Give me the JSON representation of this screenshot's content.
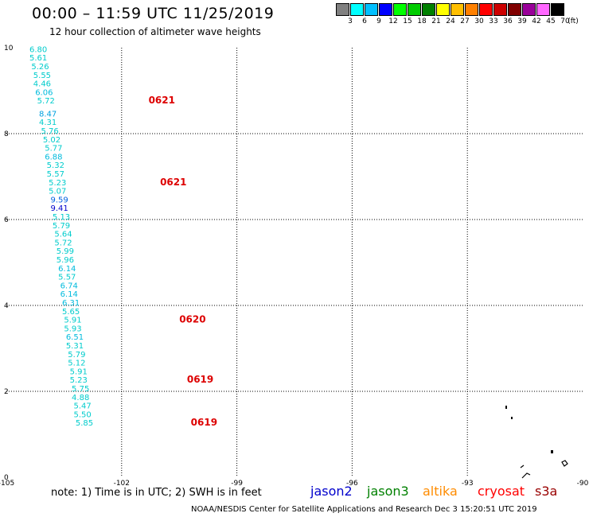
{
  "title": "00:00 – 11:59 UTC 11/25/2019",
  "subtitle": "12 hour collection of altimeter wave heights",
  "colorbar": {
    "unit_label": "(ft)",
    "bins": [
      {
        "label": "3",
        "color": "#808080"
      },
      {
        "label": "6",
        "color": "#00ffff"
      },
      {
        "label": "9",
        "color": "#00bfff"
      },
      {
        "label": "12",
        "color": "#0000ff"
      },
      {
        "label": "15",
        "color": "#00ff00"
      },
      {
        "label": "18",
        "color": "#00cc00"
      },
      {
        "label": "21",
        "color": "#008000"
      },
      {
        "label": "24",
        "color": "#ffff00"
      },
      {
        "label": "27",
        "color": "#ffbf00"
      },
      {
        "label": "30",
        "color": "#ff8000"
      },
      {
        "label": "33",
        "color": "#ff0000"
      },
      {
        "label": "36",
        "color": "#cc0000"
      },
      {
        "label": "39",
        "color": "#800000"
      },
      {
        "label": "42",
        "color": "#990099"
      },
      {
        "label": "45",
        "color": "#ff66ff"
      },
      {
        "label": "70",
        "color": "#000000"
      }
    ]
  },
  "note": "note:  1) Time is in UTC;  2) SWH is in feet",
  "satellites": [
    {
      "name": "jason2",
      "color": "#0000cc"
    },
    {
      "name": "jason3",
      "color": "#008000"
    },
    {
      "name": "altika",
      "color": "#ff8c00"
    },
    {
      "name": "cryosat",
      "color": "#ff0000"
    },
    {
      "name": "s3a",
      "color": "#990000"
    }
  ],
  "footer": "NOAA/NESDIS Center for Satellite Applications and Research     Dec  3 15:20:51 UTC 2019",
  "chart_data": {
    "type": "scatter",
    "xlim": [
      -105,
      -90
    ],
    "ylim": [
      0,
      10
    ],
    "x_ticks": [
      "-105",
      "-102",
      "-99",
      "-96",
      "-93",
      "-90"
    ],
    "y_ticks": [
      "0",
      "2",
      "4",
      "6",
      "8",
      "10"
    ],
    "grid": true,
    "series": [
      {
        "points": [
          {
            "lon": -104.4,
            "lat": 9.9,
            "value": "6.80",
            "color": "#00cccc"
          },
          {
            "lon": -104.4,
            "lat": 9.7,
            "value": "5.61",
            "color": "#00cccc"
          },
          {
            "lon": -104.35,
            "lat": 9.5,
            "value": "5.26",
            "color": "#00cccc"
          },
          {
            "lon": -104.3,
            "lat": 9.3,
            "value": "5.55",
            "color": "#00cccc"
          },
          {
            "lon": -104.3,
            "lat": 9.1,
            "value": "4.46",
            "color": "#00cccc"
          },
          {
            "lon": -104.25,
            "lat": 8.9,
            "value": "6.06",
            "color": "#00bbdd"
          },
          {
            "lon": -104.2,
            "lat": 8.7,
            "value": "5.72",
            "color": "#00cccc"
          },
          {
            "lon": -104.15,
            "lat": 8.4,
            "value": "8.47",
            "color": "#00a0e0"
          },
          {
            "lon": -104.15,
            "lat": 8.2,
            "value": "4.31",
            "color": "#00cccc"
          },
          {
            "lon": -104.1,
            "lat": 8.0,
            "value": "5.76",
            "color": "#00cccc"
          },
          {
            "lon": -104.05,
            "lat": 7.8,
            "value": "5.02",
            "color": "#00cccc"
          },
          {
            "lon": -104.0,
            "lat": 7.6,
            "value": "5.77",
            "color": "#00cccc"
          },
          {
            "lon": -104.0,
            "lat": 7.4,
            "value": "6.88",
            "color": "#00bbdd"
          },
          {
            "lon": -103.95,
            "lat": 7.2,
            "value": "5.32",
            "color": "#00cccc"
          },
          {
            "lon": -103.95,
            "lat": 7.0,
            "value": "5.57",
            "color": "#00cccc"
          },
          {
            "lon": -103.9,
            "lat": 6.8,
            "value": "5.23",
            "color": "#00cccc"
          },
          {
            "lon": -103.9,
            "lat": 6.6,
            "value": "5.07",
            "color": "#00cccc"
          },
          {
            "lon": -103.85,
            "lat": 6.4,
            "value": "9.59",
            "color": "#0060e0"
          },
          {
            "lon": -103.85,
            "lat": 6.2,
            "value": "9.41",
            "color": "#0000cc"
          },
          {
            "lon": -103.8,
            "lat": 6.0,
            "value": "5.13",
            "color": "#00cccc"
          },
          {
            "lon": -103.8,
            "lat": 5.8,
            "value": "5.79",
            "color": "#00cccc"
          },
          {
            "lon": -103.75,
            "lat": 5.6,
            "value": "5.64",
            "color": "#00cccc"
          },
          {
            "lon": -103.75,
            "lat": 5.4,
            "value": "5.72",
            "color": "#00cccc"
          },
          {
            "lon": -103.7,
            "lat": 5.2,
            "value": "5.99",
            "color": "#00cccc"
          },
          {
            "lon": -103.7,
            "lat": 5.0,
            "value": "5.96",
            "color": "#00cccc"
          },
          {
            "lon": -103.65,
            "lat": 4.8,
            "value": "6.14",
            "color": "#00bbdd"
          },
          {
            "lon": -103.65,
            "lat": 4.6,
            "value": "5.57",
            "color": "#00cccc"
          },
          {
            "lon": -103.6,
            "lat": 4.4,
            "value": "6.74",
            "color": "#00bbdd"
          },
          {
            "lon": -103.6,
            "lat": 4.2,
            "value": "6.14",
            "color": "#00bbdd"
          },
          {
            "lon": -103.55,
            "lat": 4.0,
            "value": "6.31",
            "color": "#00bbdd"
          },
          {
            "lon": -103.55,
            "lat": 3.8,
            "value": "5.65",
            "color": "#00cccc"
          },
          {
            "lon": -103.5,
            "lat": 3.6,
            "value": "5.91",
            "color": "#00cccc"
          },
          {
            "lon": -103.5,
            "lat": 3.4,
            "value": "5.93",
            "color": "#00cccc"
          },
          {
            "lon": -103.45,
            "lat": 3.2,
            "value": "6.51",
            "color": "#00bbdd"
          },
          {
            "lon": -103.45,
            "lat": 3.0,
            "value": "5.31",
            "color": "#00cccc"
          },
          {
            "lon": -103.4,
            "lat": 2.8,
            "value": "5.79",
            "color": "#00cccc"
          },
          {
            "lon": -103.4,
            "lat": 2.6,
            "value": "5.12",
            "color": "#00cccc"
          },
          {
            "lon": -103.35,
            "lat": 2.4,
            "value": "5.91",
            "color": "#00cccc"
          },
          {
            "lon": -103.35,
            "lat": 2.2,
            "value": "5.23",
            "color": "#00cccc"
          },
          {
            "lon": -103.3,
            "lat": 2.0,
            "value": "5.75",
            "color": "#00cccc"
          },
          {
            "lon": -103.3,
            "lat": 1.8,
            "value": "4.88",
            "color": "#00cccc"
          },
          {
            "lon": -103.25,
            "lat": 1.6,
            "value": "5.47",
            "color": "#00cccc"
          },
          {
            "lon": -103.25,
            "lat": 1.4,
            "value": "5.50",
            "color": "#00cccc"
          },
          {
            "lon": -103.2,
            "lat": 1.2,
            "value": "5.85",
            "color": "#00cccc"
          }
        ]
      }
    ],
    "time_labels": [
      {
        "lon": -101.3,
        "lat": 8.7,
        "text": "0621",
        "color": "#dd0000"
      },
      {
        "lon": -101.0,
        "lat": 6.8,
        "text": "0621",
        "color": "#dd0000"
      },
      {
        "lon": -100.5,
        "lat": 3.6,
        "text": "0620",
        "color": "#dd0000"
      },
      {
        "lon": -100.3,
        "lat": 2.2,
        "text": "0619",
        "color": "#dd0000"
      },
      {
        "lon": -100.2,
        "lat": 1.2,
        "text": "0619",
        "color": "#dd0000"
      }
    ]
  }
}
